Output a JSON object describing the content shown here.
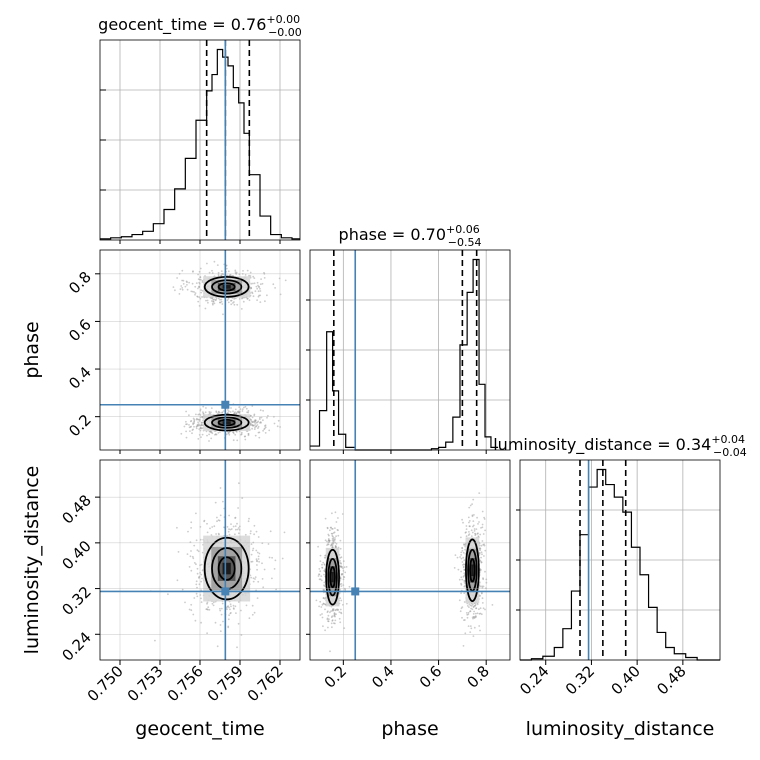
{
  "chart_data": {
    "type": "corner",
    "parameters": [
      "geocent_time",
      "phase",
      "luminosity_distance"
    ],
    "axis_labels": [
      "geocent_time",
      "phase",
      "luminosity_distance"
    ],
    "ranges": [
      [
        0.7485,
        0.7635
      ],
      [
        0.06,
        0.9
      ],
      [
        0.195,
        0.545
      ]
    ],
    "ticks": [
      {
        "values": [
          0.75,
          0.753,
          0.756,
          0.759,
          0.762
        ],
        "labels": [
          "0.750",
          "0.753",
          "0.756",
          "0.759",
          "0.762"
        ]
      },
      {
        "values": [
          0.2,
          0.4,
          0.6,
          0.8
        ],
        "labels": [
          "0.2",
          "0.4",
          "0.6",
          "0.8"
        ]
      },
      {
        "values": [
          0.24,
          0.32,
          0.4,
          0.48
        ],
        "labels": [
          "0.24",
          "0.32",
          "0.40",
          "0.48"
        ]
      }
    ],
    "truth_values": [
      0.7579,
      0.25,
      0.315
    ],
    "truth_color": "#4682b4",
    "quantiles": [
      [
        0.7565,
        0.7579,
        0.7597
      ],
      [
        0.16,
        0.7,
        0.76
      ],
      [
        0.3,
        0.34,
        0.38
      ]
    ],
    "titles": [
      {
        "label": "geocent_time",
        "value": "0.76",
        "plus": "+0.00",
        "minus": "−0.00"
      },
      {
        "label": "phase",
        "value": "0.70",
        "plus": "+0.06",
        "minus": "−0.54"
      },
      {
        "label": "luminosity_distance",
        "value": "0.34",
        "plus": "+0.04",
        "minus": "−0.04"
      }
    ],
    "histograms": [
      {
        "bin_edges": [
          0.7485,
          0.7493,
          0.7501,
          0.7509,
          0.7517,
          0.7525,
          0.7533,
          0.7541,
          0.7549,
          0.7557,
          0.7565,
          0.7569,
          0.7573,
          0.7577,
          0.7581,
          0.7585,
          0.7589,
          0.7593,
          0.7597,
          0.7605,
          0.7613,
          0.7621,
          0.7629,
          0.7635
        ],
        "counts": [
          1,
          2,
          3,
          5,
          8,
          15,
          28,
          47,
          75,
          110,
          137,
          152,
          175,
          168,
          160,
          140,
          126,
          98,
          60,
          22,
          5,
          2,
          1
        ]
      },
      {
        "bin_edges": [
          0.06,
          0.1,
          0.13,
          0.155,
          0.18,
          0.21,
          0.25,
          0.3,
          0.4,
          0.5,
          0.57,
          0.6,
          0.63,
          0.66,
          0.69,
          0.72,
          0.745,
          0.77,
          0.795,
          0.82,
          0.85
        ],
        "counts": [
          3,
          30,
          90,
          45,
          12,
          2,
          0,
          0,
          0,
          0,
          1,
          2,
          6,
          25,
          80,
          120,
          145,
          50,
          10,
          2
        ]
      },
      {
        "bin_edges": [
          0.195,
          0.215,
          0.235,
          0.255,
          0.27,
          0.285,
          0.3,
          0.315,
          0.33,
          0.345,
          0.36,
          0.375,
          0.39,
          0.405,
          0.42,
          0.435,
          0.45,
          0.465,
          0.485,
          0.505,
          0.545
        ],
        "counts": [
          0,
          1,
          3,
          10,
          25,
          55,
          100,
          138,
          152,
          140,
          130,
          118,
          90,
          68,
          42,
          22,
          10,
          5,
          2,
          0
        ]
      }
    ],
    "contours_2d": [
      {
        "x": "geocent_time",
        "y": "phase",
        "modes": [
          {
            "center": [
              0.758,
              0.745
            ],
            "scale": [
              0.0011,
              0.028
            ],
            "levels": [
              1.0,
              1.8,
              2.6
            ]
          },
          {
            "center": [
              0.758,
              0.175
            ],
            "scale": [
              0.0011,
              0.022
            ],
            "levels": [
              1.0,
              1.7,
              2.5
            ]
          }
        ]
      },
      {
        "x": "geocent_time",
        "y": "luminosity_distance",
        "modes": [
          {
            "center": [
              0.758,
              0.355
            ],
            "scale": [
              0.0011,
              0.036
            ],
            "levels": [
              1.0,
              1.8,
              2.6
            ]
          }
        ]
      },
      {
        "x": "phase",
        "y": "luminosity_distance",
        "modes": [
          {
            "center": [
              0.155,
              0.34
            ],
            "scale": [
              0.018,
              0.032
            ],
            "levels": [
              1.0,
              1.7,
              2.5
            ]
          },
          {
            "center": [
              0.742,
              0.352
            ],
            "scale": [
              0.018,
              0.036
            ],
            "levels": [
              1.0,
              1.8,
              2.6
            ]
          }
        ]
      }
    ],
    "grid": true
  }
}
